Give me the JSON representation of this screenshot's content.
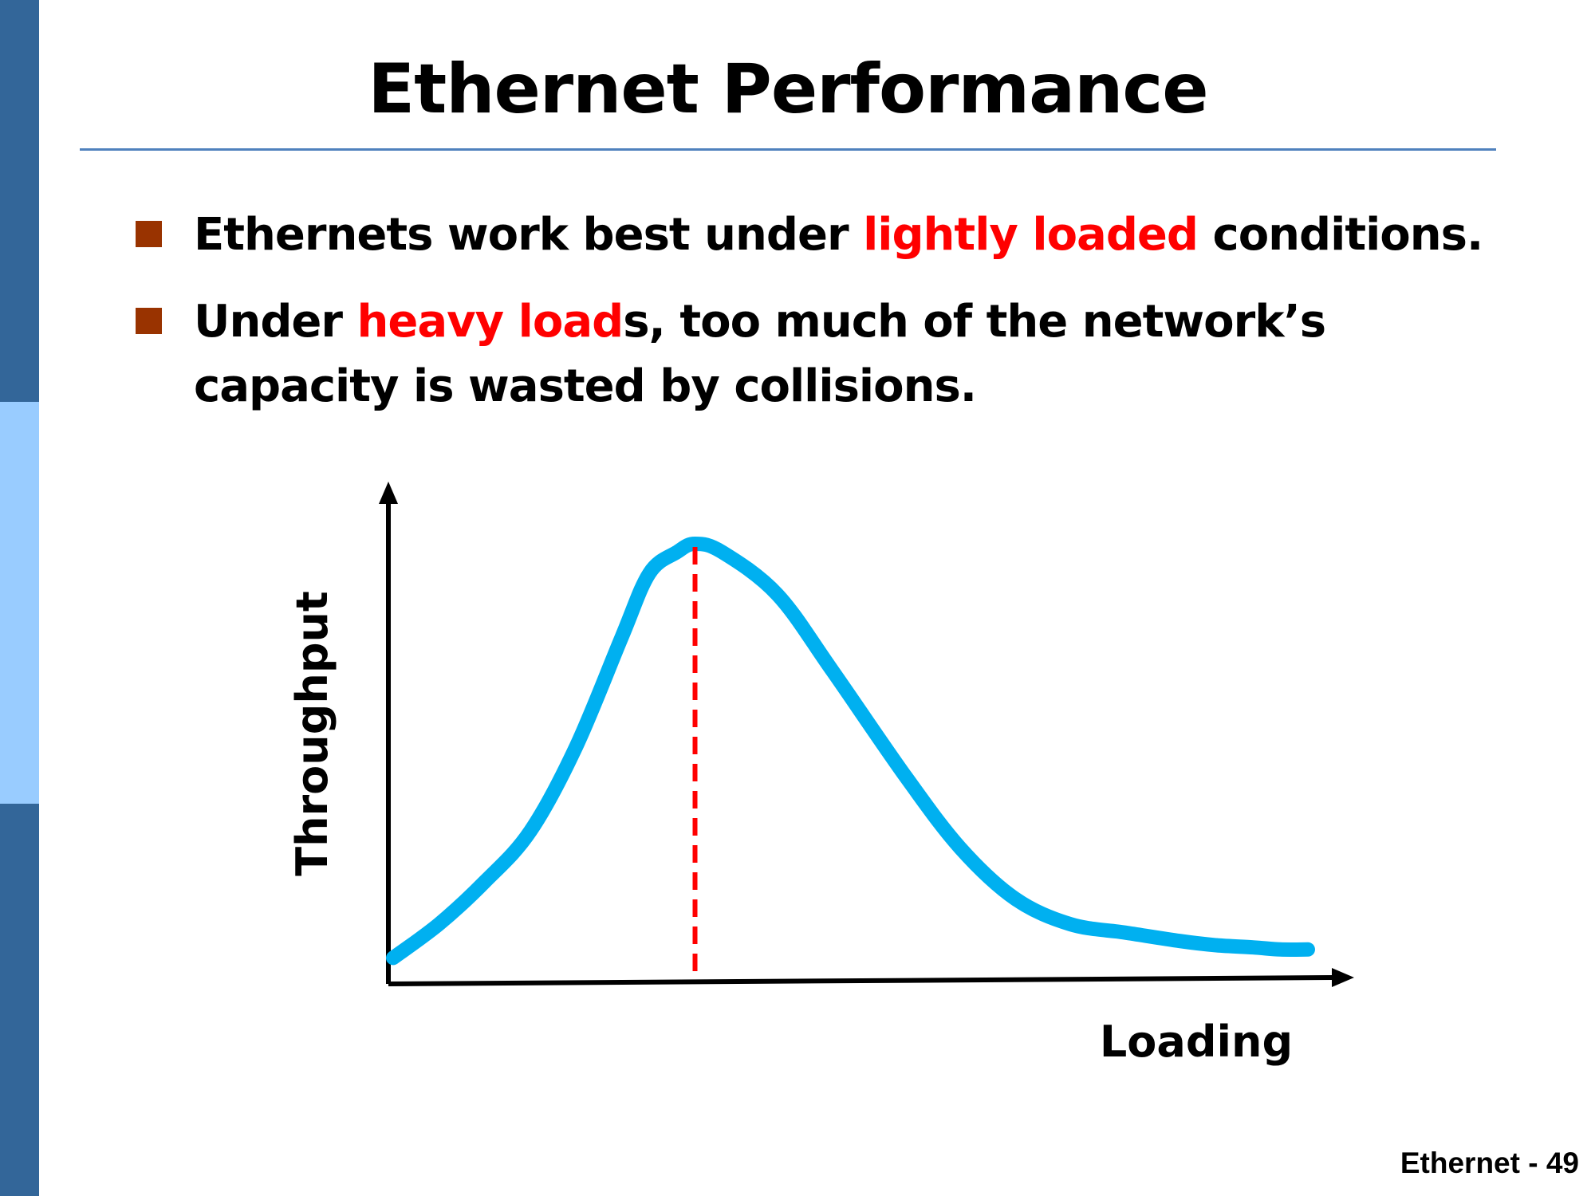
{
  "slide": {
    "title": "Ethernet Performance",
    "footer": "Ethernet - 49"
  },
  "bullets": [
    {
      "before": "Ethernets work best under ",
      "highlight": "lightly loaded",
      "after": " conditions."
    },
    {
      "before": "Under ",
      "highlight": "heavy load",
      "after": "s, too much of the network’s capacity is wasted by collisions."
    }
  ],
  "colors": {
    "sidebar_dark": "#336699",
    "sidebar_light": "#99ccff",
    "title_rule": "#4f81bd",
    "bullet_marker": "#993300",
    "highlight": "#ff0000",
    "curve": "#00b0f0",
    "peak_marker": "#ff0000",
    "axes": "#000000"
  },
  "chart_data": {
    "type": "line",
    "xlabel": "Loading",
    "ylabel": "Throughput",
    "ticks": false,
    "grid": false,
    "axis_arrows": true,
    "series": [
      {
        "x": [
          0,
          0.05,
          0.1,
          0.15,
          0.2,
          0.25,
          0.28,
          0.31,
          0.33,
          0.36,
          0.42,
          0.48,
          0.56,
          0.62,
          0.68,
          0.74,
          0.8,
          0.86,
          0.9,
          0.94,
          0.97,
          1.0
        ],
        "y": [
          0.02,
          0.1,
          0.2,
          0.32,
          0.52,
          0.78,
          0.93,
          0.98,
          1.0,
          0.98,
          0.88,
          0.7,
          0.45,
          0.28,
          0.16,
          0.1,
          0.08,
          0.06,
          0.05,
          0.045,
          0.04,
          0.04
        ]
      }
    ],
    "marker_x": 0.33
  }
}
